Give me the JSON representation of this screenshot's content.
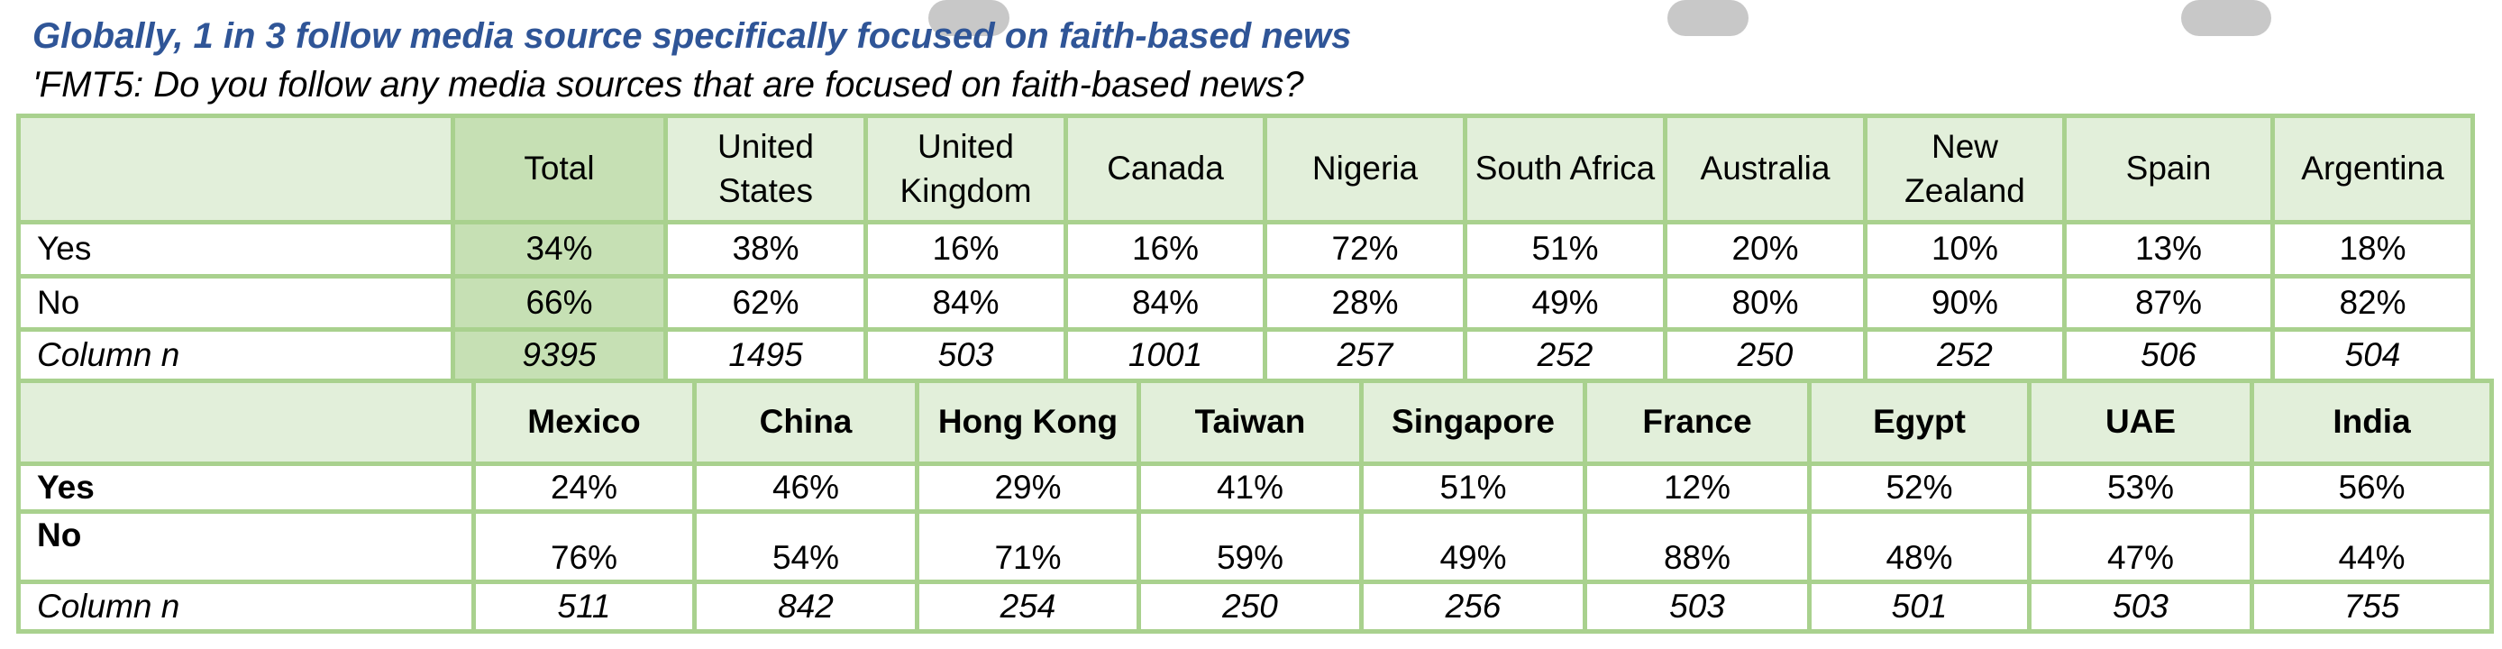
{
  "title": "Globally, 1 in 3 follow media source specifically focused on faith-based news",
  "subtitle": "'FMT5: Do you follow any media sources that are focused on faith-based news?",
  "table1": {
    "columns": [
      "Total",
      "United States",
      "United Kingdom",
      "Canada",
      "Nigeria",
      "South Africa",
      "Australia",
      "New Zealand",
      "Spain",
      "Argentina"
    ],
    "rows": [
      {
        "label": "Yes",
        "values": [
          "34%",
          "38%",
          "16%",
          "16%",
          "72%",
          "51%",
          "20%",
          "10%",
          "13%",
          "18%"
        ]
      },
      {
        "label": "No",
        "values": [
          "66%",
          "62%",
          "84%",
          "84%",
          "28%",
          "49%",
          "80%",
          "90%",
          "87%",
          "82%"
        ]
      },
      {
        "label": "Column n",
        "values": [
          "9395",
          "1495",
          "503",
          "1001",
          "257",
          "252",
          "250",
          "252",
          "506",
          "504"
        ]
      }
    ]
  },
  "table2": {
    "columns": [
      "Mexico",
      "China",
      "Hong Kong",
      "Taiwan",
      "Singapore",
      "France",
      "Egypt",
      "UAE",
      "India"
    ],
    "rows": [
      {
        "label": "Yes",
        "values": [
          "24%",
          "46%",
          "29%",
          "41%",
          "51%",
          "12%",
          "52%",
          "53%",
          "56%"
        ]
      },
      {
        "label": "No",
        "values": [
          "76%",
          "54%",
          "71%",
          "59%",
          "49%",
          "88%",
          "48%",
          "47%",
          "44%"
        ]
      },
      {
        "label": "Column n",
        "values": [
          "511",
          "842",
          "254",
          "250",
          "256",
          "503",
          "501",
          "503",
          "755"
        ]
      }
    ]
  }
}
